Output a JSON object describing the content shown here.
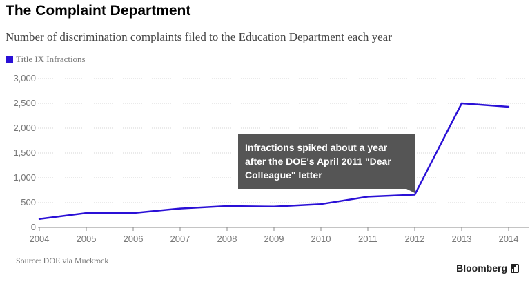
{
  "header": {
    "title": "The Complaint Department",
    "subtitle": "Number of discrimination complaints filed to the Education Department each year"
  },
  "legend": {
    "label": "Title IX Infractions",
    "color": "#2a10d6"
  },
  "annotation": {
    "text": "Infractions spiked about a year after the DOE's April 2011 \"Dear Colleague\" letter",
    "year": "2012"
  },
  "footer": {
    "source": "Source: DOE via Muckrock",
    "brand": "Bloomberg",
    "brand_icon": "bar-chart-icon"
  },
  "chart_data": {
    "type": "line",
    "title": "The Complaint Department",
    "subtitle": "Number of discrimination complaints filed to the Education Department each year",
    "x": [
      "2004",
      "2005",
      "2006",
      "2007",
      "2008",
      "2009",
      "2010",
      "2011",
      "2012",
      "2013",
      "2014"
    ],
    "series": [
      {
        "name": "Title IX Infractions",
        "color": "#2a10d6",
        "values": [
          170,
          290,
          290,
          380,
          430,
          420,
          470,
          620,
          660,
          2500,
          2430
        ]
      }
    ],
    "y_ticks": [
      "0",
      "500",
      "1,000",
      "1,500",
      "2,000",
      "2,500",
      "3,000"
    ],
    "ylim": [
      0,
      3000
    ],
    "grid": true,
    "legend_position": "top-left",
    "xlabel": "",
    "ylabel": ""
  }
}
